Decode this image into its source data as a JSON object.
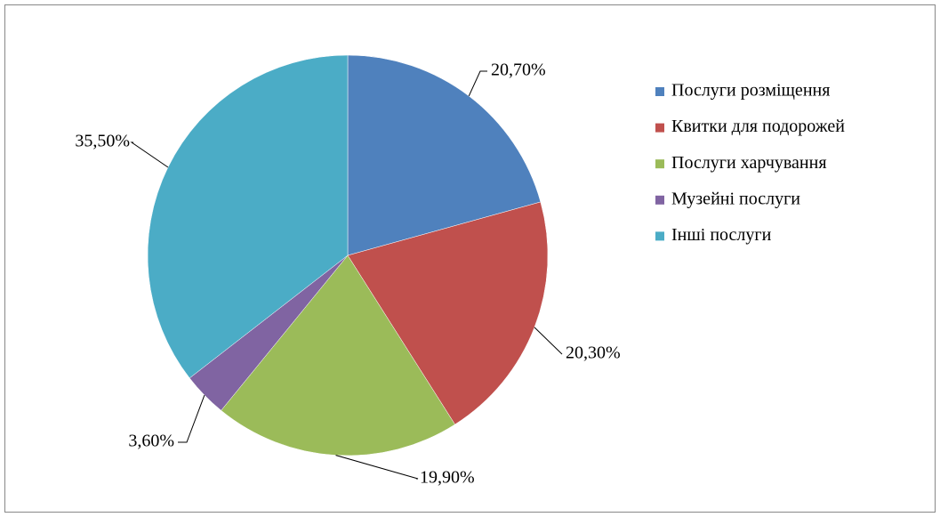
{
  "chart_data": {
    "type": "pie",
    "categories": [
      "Послуги розміщення",
      "Квитки для подорожей",
      "Послуги харчування",
      "Музейні послуги",
      "Інші послуги"
    ],
    "values": [
      20.7,
      20.3,
      19.9,
      3.6,
      35.5
    ],
    "value_labels": [
      "20,70%",
      "20,30%",
      "19,90%",
      "3,60%",
      "35,50%"
    ],
    "colors": [
      "#4f81bd",
      "#c0504d",
      "#9bbb59",
      "#8064a2",
      "#4bacc6"
    ],
    "legend": "right"
  }
}
